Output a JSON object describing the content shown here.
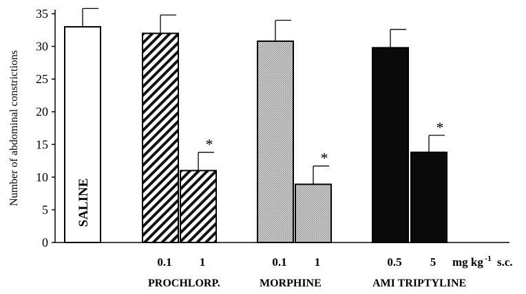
{
  "chart_data": {
    "type": "bar",
    "ylabel": "Number of abdominal constrictions",
    "ylim": [
      0,
      35
    ],
    "yticks": [
      0,
      5,
      10,
      15,
      20,
      25,
      30,
      35
    ],
    "bars": [
      {
        "group": "SALINE",
        "dose": "",
        "value": 33,
        "error": 2.8,
        "significant": false,
        "fill": "white",
        "label_in_bar": "SALINE"
      },
      {
        "group": "PROCHLORP.",
        "dose": "0.1",
        "value": 32,
        "error": 2.8,
        "significant": false,
        "fill": "hatch",
        "label_in_bar": ""
      },
      {
        "group": "PROCHLORP.",
        "dose": "1",
        "value": 11,
        "error": 2.8,
        "significant": true,
        "fill": "hatch",
        "label_in_bar": ""
      },
      {
        "group": "MORPHINE",
        "dose": "0.1",
        "value": 30.8,
        "error": 3.2,
        "significant": false,
        "fill": "stipple",
        "label_in_bar": ""
      },
      {
        "group": "MORPHINE",
        "dose": "1",
        "value": 8.9,
        "error": 2.8,
        "significant": true,
        "fill": "stipple",
        "label_in_bar": ""
      },
      {
        "group": "AMI TRIPTYLINE",
        "dose": "0.5",
        "value": 29.8,
        "error": 2.8,
        "significant": false,
        "fill": "black",
        "label_in_bar": ""
      },
      {
        "group": "AMI TRIPTYLINE",
        "dose": "5",
        "value": 13.8,
        "error": 2.6,
        "significant": true,
        "fill": "black",
        "label_in_bar": ""
      }
    ],
    "group_labels": [
      "PROCHLORP.",
      "MORPHINE",
      "AMI TRIPTYLINE"
    ],
    "significance_marker": "*",
    "unit_label": "mg kg",
    "unit_exponent": "-1",
    "route_label": "s.c.",
    "grid": false,
    "legend": "none"
  }
}
